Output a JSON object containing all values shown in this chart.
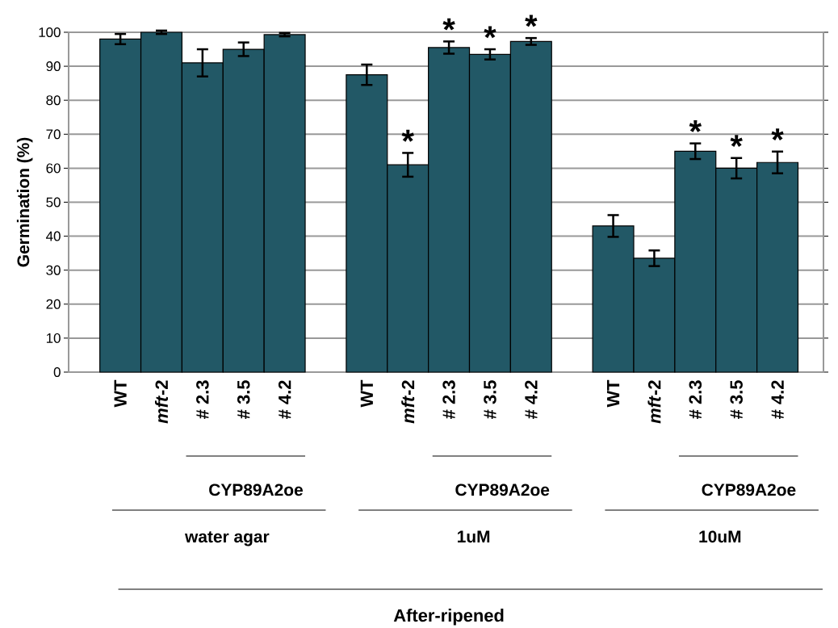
{
  "chart_data": {
    "type": "bar",
    "ylabel": "Germination (%)",
    "categories": [
      "WT",
      "*mft*-2",
      "# 2.3",
      "# 3.5",
      "# 4.2",
      null,
      "WT",
      "*mft*-2",
      "# 2.3",
      "# 3.5",
      "# 4.2",
      null,
      "WT",
      "*mft*-2",
      "# 2.3",
      "# 3.5",
      "# 4.2"
    ],
    "values": [
      98,
      100,
      91,
      95,
      99.3,
      null,
      87.5,
      61,
      95.5,
      93.5,
      97.3,
      null,
      43,
      33.5,
      65,
      60,
      61.7
    ],
    "errors": [
      1.5,
      0.5,
      4,
      2,
      0.5,
      null,
      3,
      3.5,
      1.8,
      1.5,
      1,
      null,
      3.2,
      2.3,
      2.3,
      3,
      3.2
    ],
    "value_labels": [
      null,
      null,
      null,
      null,
      null,
      null,
      null,
      "*",
      "*",
      "*",
      "*",
      null,
      null,
      null,
      "*",
      "*",
      "*"
    ],
    "color": "#225866",
    "ylim": [
      0,
      100
    ],
    "yticks": [
      0,
      10,
      20,
      30,
      40,
      50,
      60,
      70,
      80,
      90,
      100
    ],
    "grid": "y",
    "annotations": [
      "CYP89A2oe",
      "CYP89A2oe",
      "CYP89A2oe",
      "water agar",
      "1uM",
      "10uM",
      "After-ripened"
    ]
  }
}
